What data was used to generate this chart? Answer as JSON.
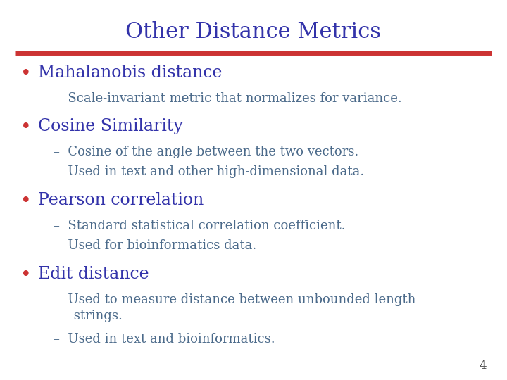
{
  "title": "Other Distance Metrics",
  "title_color": "#3333AA",
  "title_fontsize": 22,
  "separator_color": "#CC3333",
  "background_color": "#FFFFFF",
  "bullet_color": "#CC3333",
  "bullet_fontsize": 17,
  "sub_color": "#4B6A8A",
  "sub_fontsize": 13,
  "page_number": "4",
  "bullets": [
    {
      "text": "Mahalanobis distance",
      "subs": [
        "–  Scale-invariant metric that normalizes for variance."
      ]
    },
    {
      "text": "Cosine Similarity",
      "subs": [
        "–  Cosine of the angle between the two vectors.",
        "–  Used in text and other high-dimensional data."
      ]
    },
    {
      "text": "Pearson correlation",
      "subs": [
        "–  Standard statistical correlation coefficient.",
        "–  Used for bioinformatics data."
      ]
    },
    {
      "text": "Edit distance",
      "subs": [
        "–  Used to measure distance between unbounded length\n     strings.",
        "–  Used in text and bioinformatics."
      ]
    }
  ]
}
